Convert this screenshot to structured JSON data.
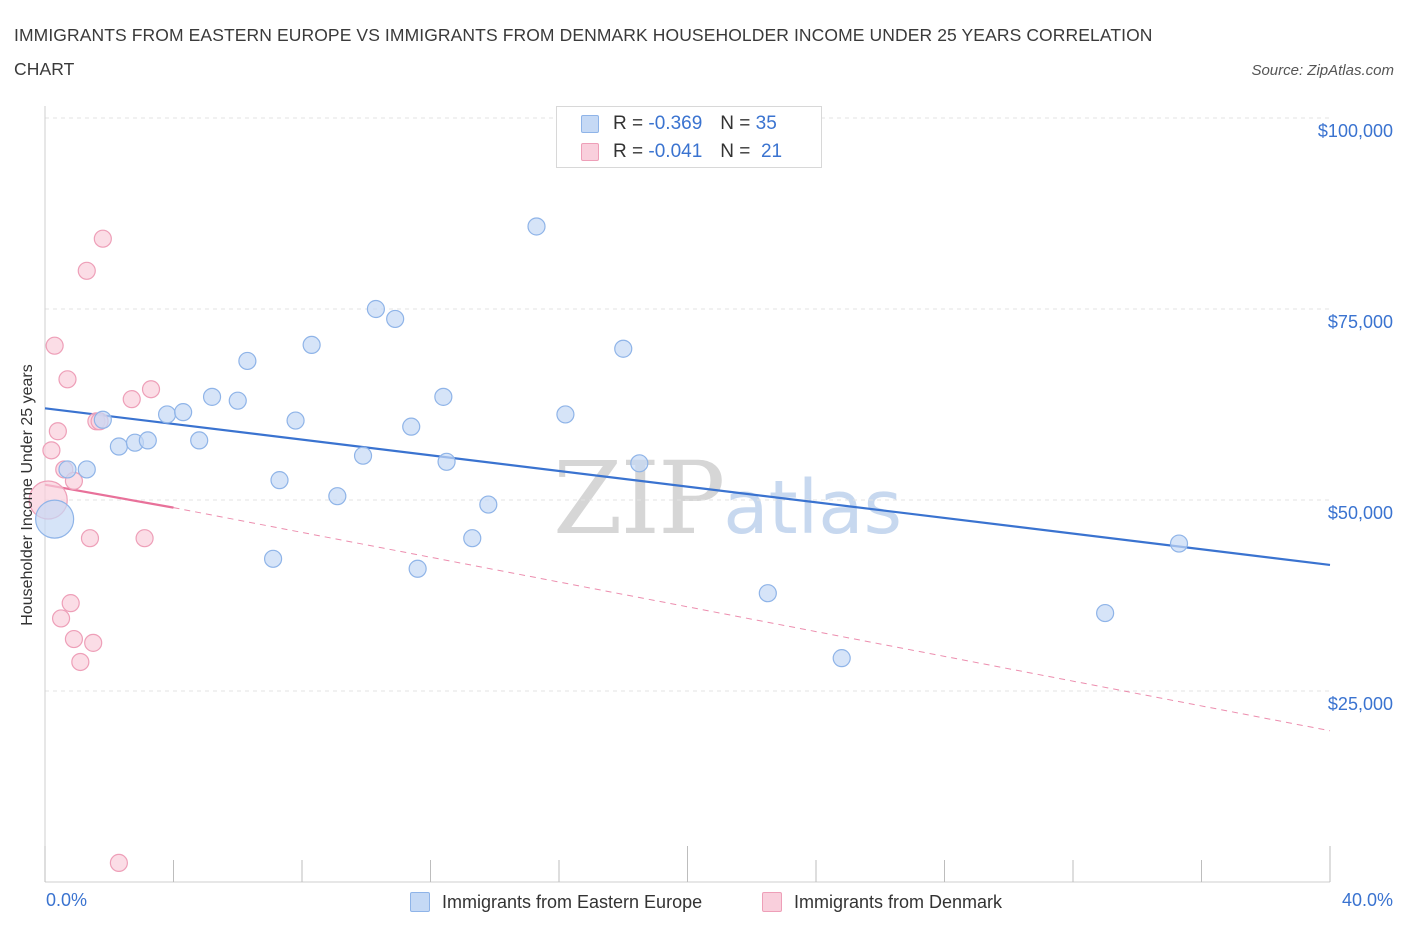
{
  "title": "IMMIGRANTS FROM EASTERN EUROPE VS IMMIGRANTS FROM DENMARK HOUSEHOLDER INCOME UNDER 25 YEARS CORRELATION CHART",
  "source": "Source: ZipAtlas.com",
  "watermark": {
    "zip": "ZIP",
    "atlas": "atlas"
  },
  "colors": {
    "blue_fill": "#c5d9f5",
    "blue_stroke": "#8fb4e8",
    "blue_line": "#3a73d0",
    "pink_fill": "#f9cfdc",
    "pink_stroke": "#ee9fb8",
    "pink_line": "#e8719a",
    "axis_text": "#3a73d0",
    "grid": "#e3e3e3"
  },
  "legend_top": [
    {
      "series": "blue",
      "r_label": "R =",
      "r_value": "-0.369",
      "n_label": "N =",
      "n_value": "35"
    },
    {
      "series": "pink",
      "r_label": "R =",
      "r_value": "-0.041",
      "n_label": "N =",
      "n_value": "21"
    }
  ],
  "chart_data": {
    "type": "scatter",
    "title": "IMMIGRANTS FROM EASTERN EUROPE VS IMMIGRANTS FROM DENMARK HOUSEHOLDER INCOME UNDER 25 YEARS CORRELATION CHART",
    "xlabel": "",
    "ylabel": "Householder Income Under 25 years",
    "xlim": [
      0,
      40
    ],
    "ylim": [
      0,
      100000
    ],
    "x_tick_labels": [
      "0.0%",
      "40.0%"
    ],
    "y_ticks": [
      25000,
      50000,
      75000,
      100000
    ],
    "y_tick_labels": [
      "$25,000",
      "$50,000",
      "$75,000",
      "$100,000"
    ],
    "grid": "horizontal dashed",
    "legend_position": "top-center and bottom",
    "series": [
      {
        "name": "Immigrants from Eastern Europe",
        "color": "#8fb4e8",
        "points": [
          [
            0.3,
            47500,
            "large"
          ],
          [
            0.7,
            54000
          ],
          [
            1.3,
            54000
          ],
          [
            1.8,
            60500
          ],
          [
            2.3,
            57000
          ],
          [
            2.8,
            57500
          ],
          [
            3.2,
            57800
          ],
          [
            3.8,
            61200
          ],
          [
            4.3,
            61500
          ],
          [
            4.8,
            57800
          ],
          [
            5.2,
            63500
          ],
          [
            6.0,
            63000
          ],
          [
            6.3,
            68200
          ],
          [
            7.1,
            42300
          ],
          [
            7.3,
            52600
          ],
          [
            7.8,
            60400
          ],
          [
            8.3,
            70300
          ],
          [
            9.1,
            50500
          ],
          [
            9.9,
            55800
          ],
          [
            10.3,
            75000
          ],
          [
            10.9,
            73700
          ],
          [
            11.4,
            59600
          ],
          [
            11.6,
            41000
          ],
          [
            12.5,
            55000
          ],
          [
            12.4,
            63500
          ],
          [
            13.3,
            45000
          ],
          [
            13.8,
            49400
          ],
          [
            15.3,
            85800
          ],
          [
            16.2,
            61200
          ],
          [
            18.0,
            69800
          ],
          [
            18.5,
            54800
          ],
          [
            22.5,
            37800
          ],
          [
            24.8,
            29300
          ],
          [
            33.0,
            35200
          ],
          [
            35.3,
            44300
          ]
        ],
        "trend": {
          "x": [
            0,
            40
          ],
          "y": [
            62000,
            41500
          ],
          "style": "solid"
        }
      },
      {
        "name": "Immigrants from Denmark",
        "color": "#ee9fb8",
        "points": [
          [
            0.1,
            50000,
            "large"
          ],
          [
            0.2,
            56500
          ],
          [
            0.3,
            70200
          ],
          [
            0.4,
            59000
          ],
          [
            0.5,
            34500
          ],
          [
            0.6,
            54000
          ],
          [
            0.7,
            65800
          ],
          [
            0.8,
            36500
          ],
          [
            0.9,
            52500
          ],
          [
            0.9,
            31800
          ],
          [
            1.1,
            28800
          ],
          [
            1.3,
            80000
          ],
          [
            1.4,
            45000
          ],
          [
            1.5,
            31300
          ],
          [
            1.6,
            60300
          ],
          [
            1.8,
            84200
          ],
          [
            2.3,
            2500
          ],
          [
            2.7,
            63200
          ],
          [
            3.1,
            45000
          ],
          [
            3.3,
            64500
          ],
          [
            1.7,
            60300
          ]
        ],
        "trend": {
          "x": [
            0,
            4
          ],
          "y": [
            52000,
            49000
          ],
          "style": "solid",
          "extended": {
            "x": [
              4,
              40
            ],
            "y": [
              49000,
              19800
            ],
            "style": "dashed"
          }
        }
      }
    ]
  },
  "bottom_legend": [
    {
      "series": "blue",
      "label": "Immigrants from Eastern Europe"
    },
    {
      "series": "pink",
      "label": "Immigrants from Denmark"
    }
  ]
}
